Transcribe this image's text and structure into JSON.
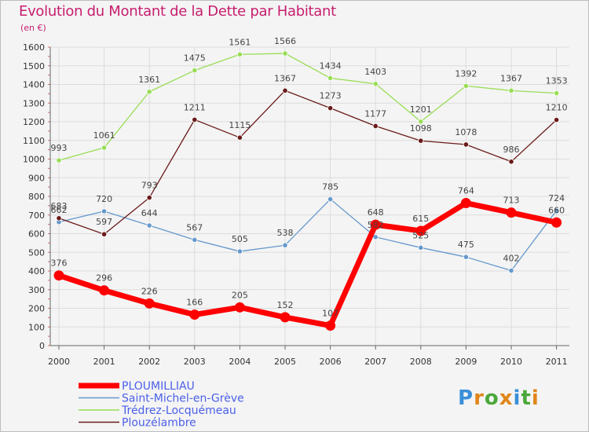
{
  "title": "Evolution du Montant de la Dette par Habitant",
  "unit": "(en €)",
  "logo": "Proxiti",
  "chart_data": {
    "type": "line",
    "x": [
      "2000",
      "2001",
      "2002",
      "2003",
      "2004",
      "2005",
      "2006",
      "2007",
      "2008",
      "2009",
      "2010",
      "2011"
    ],
    "ylim": [
      0,
      1600
    ],
    "yticks": [
      0,
      100,
      200,
      300,
      400,
      500,
      600,
      700,
      800,
      900,
      1000,
      1100,
      1200,
      1300,
      1400,
      1500,
      1600
    ],
    "grid": true,
    "legend": "bottom-left",
    "series": [
      {
        "name": "PLOUMILLIAU",
        "color": "#ff0000",
        "values": [
          376,
          296,
          226,
          166,
          205,
          152,
          107,
          648,
          615,
          764,
          713,
          660
        ]
      },
      {
        "name": "Saint-Michel-en-Grève",
        "color": "#6699cc",
        "values": [
          662,
          720,
          644,
          567,
          505,
          538,
          785,
          582,
          525,
          475,
          402,
          724
        ]
      },
      {
        "name": "Trédrez-Locquémeau",
        "color": "#99dd55",
        "values": [
          993,
          1061,
          1361,
          1475,
          1561,
          1566,
          1434,
          1403,
          1201,
          1392,
          1367,
          1353
        ]
      },
      {
        "name": "Plouzélambre",
        "color": "#6b1a1a",
        "values": [
          683,
          597,
          793,
          1211,
          1115,
          1367,
          1273,
          1177,
          1098,
          1078,
          986,
          1210
        ]
      }
    ]
  }
}
